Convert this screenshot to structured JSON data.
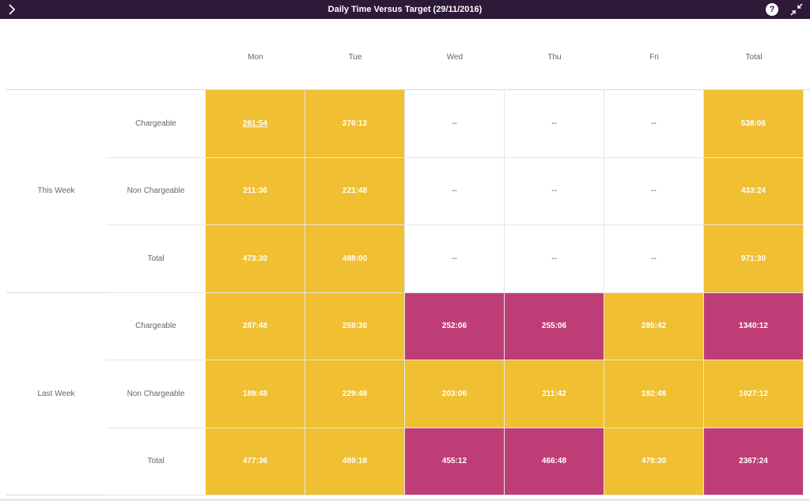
{
  "titlebar": {
    "title": "Daily Time Versus Target (29/11/2016)",
    "help_glyph": "?",
    "icons": {
      "left": "chevron-right-icon",
      "help": "help-icon",
      "right": "collapse-icon"
    }
  },
  "columns": [
    "Mon",
    "Tue",
    "Wed",
    "Thu",
    "Fri",
    "Total"
  ],
  "colors": {
    "yellow": "#f0bf32",
    "magenta": "#bf3d77",
    "titlebar": "#2e1a38"
  },
  "groups": [
    {
      "label": "This Week",
      "rows": [
        {
          "label": "Chargeable",
          "cells": [
            {
              "v": "261:54",
              "c": "yellow",
              "link": true
            },
            {
              "v": "276:12",
              "c": "yellow"
            },
            {
              "v": "--",
              "c": "white"
            },
            {
              "v": "--",
              "c": "white"
            },
            {
              "v": "--",
              "c": "white"
            },
            {
              "v": "538:06",
              "c": "yellow"
            }
          ]
        },
        {
          "label": "Non Chargeable",
          "cells": [
            {
              "v": "211:36",
              "c": "yellow"
            },
            {
              "v": "221:48",
              "c": "yellow"
            },
            {
              "v": "--",
              "c": "white"
            },
            {
              "v": "--",
              "c": "white"
            },
            {
              "v": "--",
              "c": "white"
            },
            {
              "v": "433:24",
              "c": "yellow"
            }
          ]
        },
        {
          "label": "Total",
          "cells": [
            {
              "v": "473:30",
              "c": "yellow"
            },
            {
              "v": "498:00",
              "c": "yellow"
            },
            {
              "v": "--",
              "c": "white"
            },
            {
              "v": "--",
              "c": "white"
            },
            {
              "v": "--",
              "c": "white"
            },
            {
              "v": "971:30",
              "c": "yellow"
            }
          ]
        }
      ]
    },
    {
      "label": "Last Week",
      "rows": [
        {
          "label": "Chargeable",
          "cells": [
            {
              "v": "287:48",
              "c": "yellow"
            },
            {
              "v": "259:30",
              "c": "yellow"
            },
            {
              "v": "252:06",
              "c": "magenta"
            },
            {
              "v": "255:06",
              "c": "magenta"
            },
            {
              "v": "285:42",
              "c": "yellow"
            },
            {
              "v": "1340:12",
              "c": "magenta"
            }
          ]
        },
        {
          "label": "Non Chargeable",
          "cells": [
            {
              "v": "189:48",
              "c": "yellow"
            },
            {
              "v": "229:48",
              "c": "yellow"
            },
            {
              "v": "203:06",
              "c": "yellow"
            },
            {
              "v": "211:42",
              "c": "yellow"
            },
            {
              "v": "192:48",
              "c": "yellow"
            },
            {
              "v": "1027:12",
              "c": "yellow"
            }
          ]
        },
        {
          "label": "Total",
          "cells": [
            {
              "v": "477:36",
              "c": "yellow"
            },
            {
              "v": "489:18",
              "c": "yellow"
            },
            {
              "v": "455:12",
              "c": "magenta"
            },
            {
              "v": "466:48",
              "c": "magenta"
            },
            {
              "v": "478:30",
              "c": "yellow"
            },
            {
              "v": "2367:24",
              "c": "magenta"
            }
          ]
        }
      ]
    }
  ]
}
